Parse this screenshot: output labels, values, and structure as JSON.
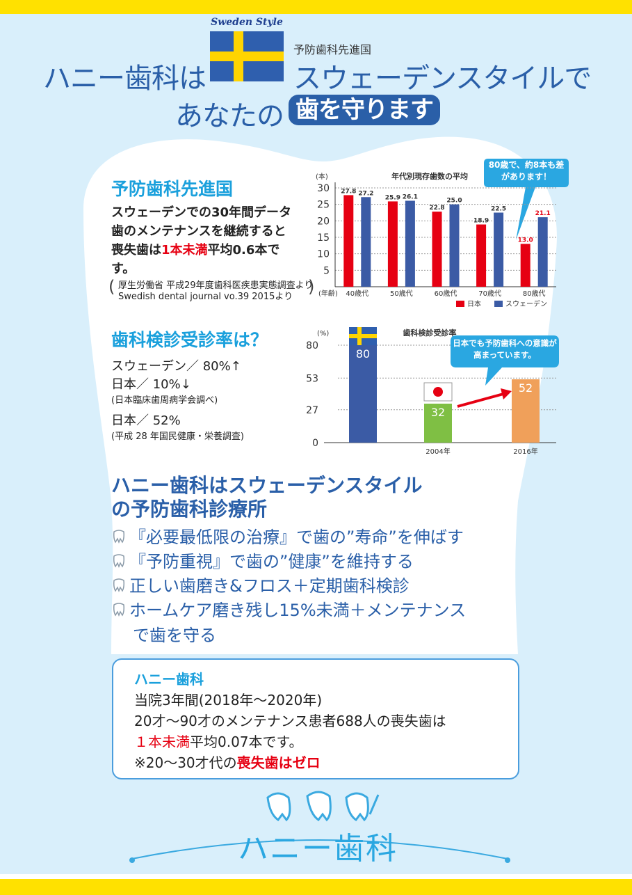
{
  "header": {
    "sweden_style": "Sweden Style",
    "pioneer_small": "予防歯科先進国",
    "line1_left": "ハニー歯科は",
    "line1_right": "スウェーデンスタイルで",
    "line2_left": "あなたの",
    "line2_badge": "歯を守ります"
  },
  "section1": {
    "heading": "予防歯科先進国",
    "body_a": "スウェーデンでの30年間データ",
    "body_b": "歯のメンテナンスを継続すると",
    "body_c_pre": "喪失歯は",
    "body_c_red": "1本未満",
    "body_c_post": "平均0.6本で",
    "body_d": "す。",
    "source1": "厚生労働省 平成29年度歯科医疾患実態調査より",
    "source2": "Swedish dental journal vo.39 2015より"
  },
  "section2": {
    "heading": "歯科検診受診率は？",
    "sweden_rate": "スウェーデン／ 80%↑",
    "japan_rate": "日本／ 10%↓",
    "japan_rate_src": "(日本臨床歯周病学会調べ)",
    "japan_rate2": "日本／ 52%",
    "japan_rate2_src": "(平成 28 年国民健康・栄養調査)"
  },
  "section3": {
    "heading1": "ハニー歯科はスウェーデンスタイル",
    "heading2": "の予防歯科診療所",
    "items": [
      "『必要最低限の治療』で歯の”寿命”を伸ばす",
      "『予防重視』で歯の”健康”を維持する",
      "正しい歯磨き&フロス＋定期歯科検診",
      "ホームケア磨き残し15%未満＋メンテナンス"
    ],
    "item4_cont": "で歯を守る"
  },
  "infobox": {
    "title": "ハニー歯科",
    "line1": "当院3年間(2018年～2020年)",
    "line2": "20才～90才のメンテナンス患者688人の喪失歯は",
    "line3_red": "１本未満",
    "line3_rest": "平均0.07本です。",
    "line4_pre": "※20～30才代の",
    "line4_red": "喪失歯はゼロ"
  },
  "footer": {
    "logo": "ハニー歯科"
  },
  "chart_data": [
    {
      "type": "bar",
      "title": "年代別現存歯数の平均",
      "ylabel": "(本)",
      "xlabel": "(年齢)",
      "ylim": [
        0,
        30
      ],
      "yticks": [
        5,
        10,
        15,
        20,
        25,
        30
      ],
      "categories": [
        "40歳代",
        "50歳代",
        "60歳代",
        "70歳代",
        "80歳代"
      ],
      "series": [
        {
          "name": "日本",
          "color": "#e60012",
          "values": [
            27.8,
            25.9,
            22.8,
            18.9,
            13.0
          ]
        },
        {
          "name": "スウェーデン",
          "color": "#3b5ba5",
          "values": [
            27.2,
            26.1,
            25.0,
            22.5,
            21.1
          ]
        }
      ],
      "callout": "80歳で、約8本も差があります！"
    },
    {
      "type": "bar",
      "title": "歯科検診受診率",
      "ylabel": "(%)",
      "ylim": [
        0,
        80
      ],
      "yticks": [
        0,
        27,
        53,
        80
      ],
      "bars": [
        {
          "label": "",
          "value": 80,
          "color": "#3b5ba5",
          "flag": "sweden"
        },
        {
          "label": "2004年",
          "value": 32,
          "color": "#7fbf44",
          "flag": "japan"
        },
        {
          "label": "2016年",
          "value": 52,
          "color": "#f0a05a"
        }
      ],
      "callout": "日本でも予防歯科への意識が高まっています。"
    }
  ]
}
